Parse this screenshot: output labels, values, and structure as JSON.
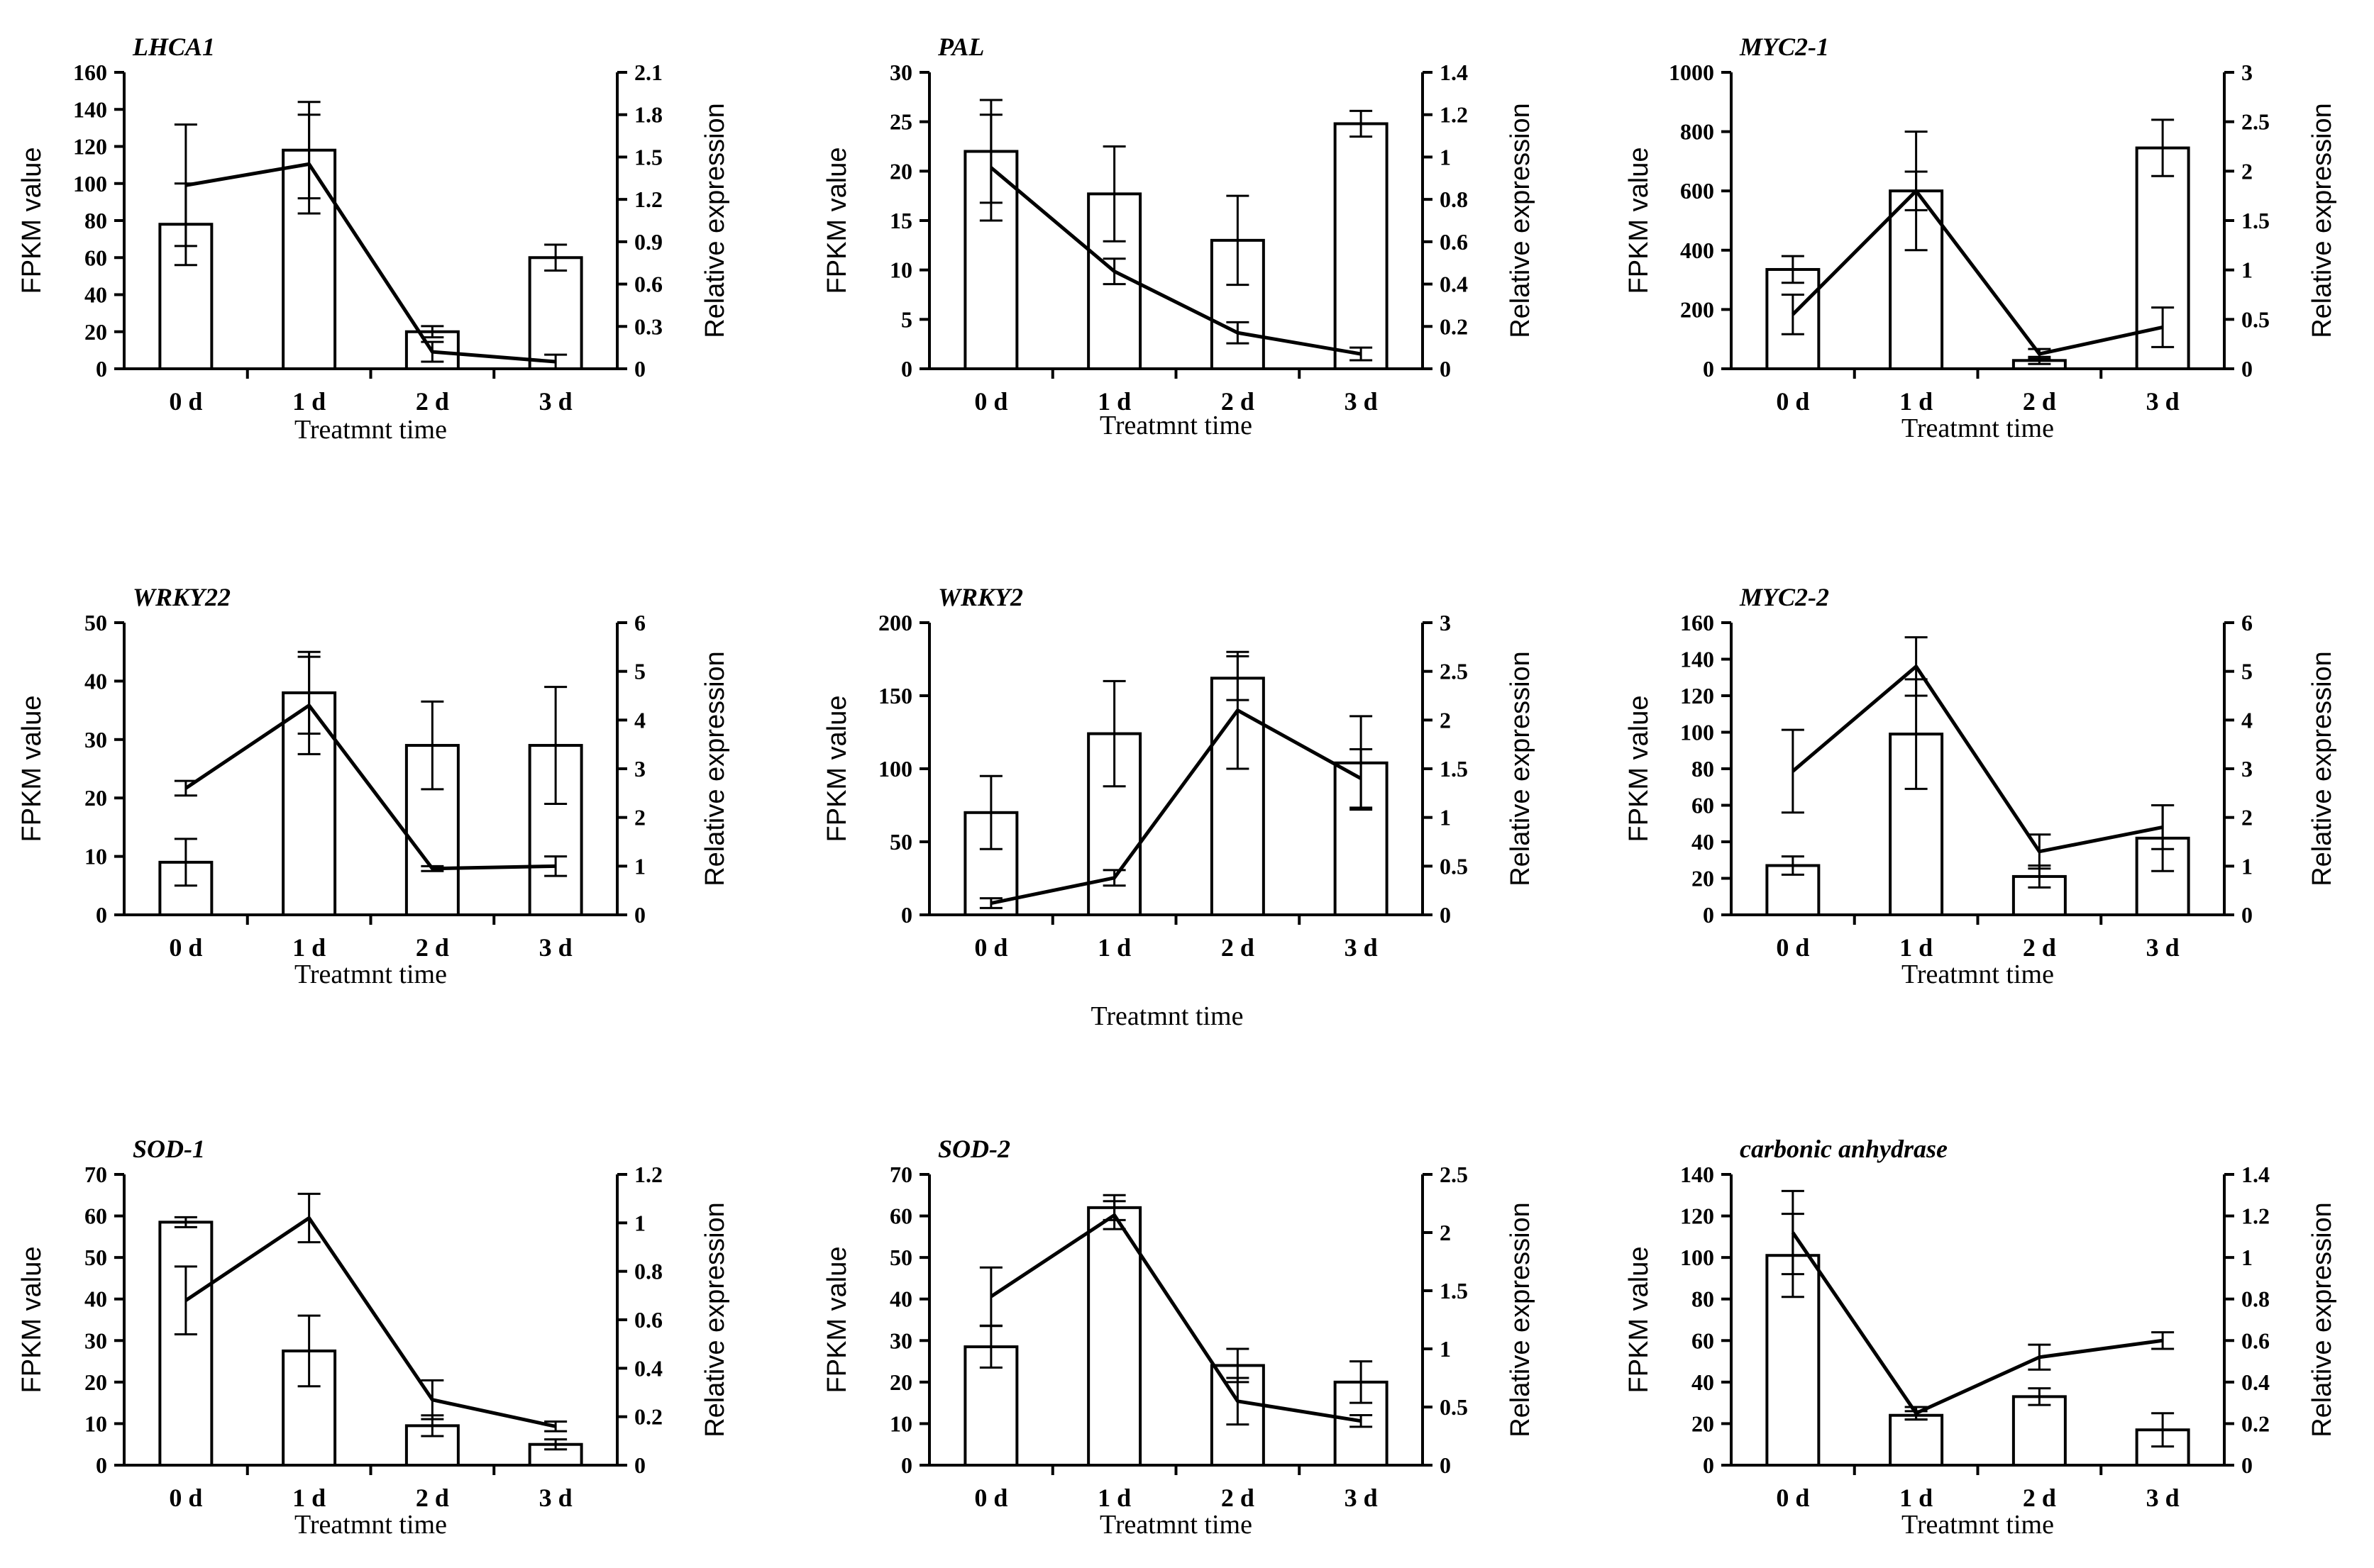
{
  "figure": {
    "shared_xlabel": "Treatmnt time"
  },
  "chart_data": [
    {
      "type": "bar",
      "title": "LHCA1",
      "categories": [
        "0 d",
        "1 d",
        "2 d",
        "3 d"
      ],
      "xlabel": "Treatmnt time",
      "ylabel": "FPKM value",
      "y2label": "Relative expression",
      "ylim": [
        0,
        160
      ],
      "yticks": [
        "0",
        "20",
        "40",
        "60",
        "80",
        "100",
        "120",
        "140",
        "160"
      ],
      "y2lim": [
        0,
        2.1
      ],
      "y2ticks": [
        "0",
        "0.3",
        "0.6",
        "0.9",
        "1.2",
        "1.5",
        "1.8",
        "2.1"
      ],
      "series": [
        {
          "name": "FPKM value",
          "kind": "bar",
          "axis": "left",
          "values": [
            78,
            118,
            20,
            60
          ],
          "errors": [
            22,
            26,
            3,
            7
          ]
        },
        {
          "name": "Relative expression",
          "kind": "line",
          "axis": "right",
          "values": [
            1.3,
            1.45,
            0.12,
            0.05
          ],
          "errors": [
            0.43,
            0.35,
            0.07,
            0.05
          ]
        }
      ]
    },
    {
      "type": "bar",
      "title": "PAL",
      "categories": [
        "0 d",
        "1 d",
        "2 d",
        "3 d"
      ],
      "xlabel": "Treatmnt time",
      "ylabel": "FPKM value",
      "y2label": "Relative expression",
      "ylim": [
        0,
        30
      ],
      "yticks": [
        "0",
        "5",
        "10",
        "15",
        "20",
        "25",
        "30"
      ],
      "y2lim": [
        0,
        1.4
      ],
      "y2ticks": [
        "0",
        "0.2",
        "0.4",
        "0.6",
        "0.8",
        "1",
        "1.2",
        "1.4"
      ],
      "series": [
        {
          "name": "FPKM value",
          "kind": "bar",
          "axis": "left",
          "values": [
            22,
            17.7,
            13,
            24.8
          ],
          "errors": [
            5.2,
            4.8,
            4.5,
            1.3
          ]
        },
        {
          "name": "Relative expression",
          "kind": "line",
          "axis": "right",
          "values": [
            0.95,
            0.46,
            0.17,
            0.07
          ],
          "errors": [
            0.25,
            0.06,
            0.05,
            0.03
          ]
        }
      ]
    },
    {
      "type": "bar",
      "title": "MYC2-1",
      "categories": [
        "0 d",
        "1 d",
        "2 d",
        "3 d"
      ],
      "xlabel": "Treatmnt time",
      "ylabel": "FPKM value",
      "y2label": "Relative expression",
      "ylim": [
        0,
        1000
      ],
      "yticks": [
        "0",
        "200",
        "400",
        "600",
        "800",
        "1000"
      ],
      "y2lim": [
        0,
        3
      ],
      "y2ticks": [
        "0",
        "0.5",
        "1",
        "1.5",
        "2",
        "2.5",
        "3"
      ],
      "series": [
        {
          "name": "FPKM value",
          "kind": "bar",
          "axis": "left",
          "values": [
            335,
            600,
            28,
            745
          ],
          "errors": [
            45,
            65,
            12,
            95
          ]
        },
        {
          "name": "Relative expression",
          "kind": "line",
          "axis": "right",
          "values": [
            0.55,
            1.8,
            0.15,
            0.42
          ],
          "errors": [
            0.2,
            0.6,
            0.05,
            0.2
          ]
        }
      ]
    },
    {
      "type": "bar",
      "title": "WRKY22",
      "categories": [
        "0 d",
        "1 d",
        "2 d",
        "3 d"
      ],
      "xlabel": "Treatmnt time",
      "ylabel": "FPKM value",
      "y2label": "Relative expression",
      "ylim": [
        0,
        50
      ],
      "yticks": [
        "0",
        "10",
        "20",
        "30",
        "40",
        "50"
      ],
      "y2lim": [
        0,
        6
      ],
      "y2ticks": [
        "0",
        "1",
        "2",
        "3",
        "4",
        "5",
        "6"
      ],
      "series": [
        {
          "name": "FPKM value",
          "kind": "bar",
          "axis": "left",
          "values": [
            9,
            38,
            29,
            29
          ],
          "errors": [
            4,
            7,
            7.5,
            10
          ]
        },
        {
          "name": "Relative expression",
          "kind": "line",
          "axis": "right",
          "values": [
            2.6,
            4.3,
            0.95,
            1.0
          ],
          "errors": [
            0.15,
            1.0,
            0.05,
            0.2
          ]
        }
      ]
    },
    {
      "type": "bar",
      "title": "WRKY2",
      "categories": [
        "0 d",
        "1 d",
        "2 d",
        "3 d"
      ],
      "xlabel": "Treatmnt time",
      "ylabel": "FPKM value",
      "y2label": "Relative expression",
      "ylim": [
        0,
        200
      ],
      "yticks": [
        "0",
        "50",
        "100",
        "150",
        "200"
      ],
      "y2lim": [
        0,
        3
      ],
      "y2ticks": [
        "0",
        "0.5",
        "1",
        "1.5",
        "2",
        "2.5",
        "3"
      ],
      "series": [
        {
          "name": "FPKM value",
          "kind": "bar",
          "axis": "left",
          "values": [
            70,
            124,
            162,
            104
          ],
          "errors": [
            25,
            36,
            15,
            32
          ]
        },
        {
          "name": "Relative expression",
          "kind": "line",
          "axis": "right",
          "values": [
            0.12,
            0.38,
            2.1,
            1.4
          ],
          "errors": [
            0.05,
            0.08,
            0.6,
            0.3
          ]
        }
      ]
    },
    {
      "type": "bar",
      "title": "MYC2-2",
      "categories": [
        "0 d",
        "1 d",
        "2 d",
        "3 d"
      ],
      "xlabel": "Treatmnt time",
      "ylabel": "FPKM value",
      "y2label": "Relative expression",
      "ylim": [
        0,
        160
      ],
      "yticks": [
        "0",
        "20",
        "40",
        "60",
        "80",
        "100",
        "120",
        "140",
        "160"
      ],
      "y2lim": [
        0,
        6
      ],
      "y2ticks": [
        "0",
        "1",
        "2",
        "3",
        "4",
        "5",
        "6"
      ],
      "series": [
        {
          "name": "FPKM value",
          "kind": "bar",
          "axis": "left",
          "values": [
            27,
            99,
            21,
            42
          ],
          "errors": [
            5,
            30,
            6,
            18
          ]
        },
        {
          "name": "Relative expression",
          "kind": "line",
          "axis": "right",
          "values": [
            2.95,
            5.1,
            1.3,
            1.8
          ],
          "errors": [
            0.85,
            0.6,
            0.35,
            0.45
          ]
        }
      ]
    },
    {
      "type": "bar",
      "title": "SOD-1",
      "categories": [
        "0 d",
        "1 d",
        "2 d",
        "3 d"
      ],
      "xlabel": "Treatmnt time",
      "ylabel": "FPKM value",
      "y2label": "Relative expression",
      "ylim": [
        0,
        70
      ],
      "yticks": [
        "0",
        "10",
        "20",
        "30",
        "40",
        "50",
        "60",
        "70"
      ],
      "y2lim": [
        0,
        1.2
      ],
      "y2ticks": [
        "0",
        "0.2",
        "0.4",
        "0.6",
        "0.8",
        "1",
        "1.2"
      ],
      "series": [
        {
          "name": "FPKM value",
          "kind": "bar",
          "axis": "left",
          "values": [
            58.5,
            27.5,
            9.5,
            5
          ],
          "errors": [
            1.2,
            8.5,
            2.5,
            1.2
          ]
        },
        {
          "name": "Relative expression",
          "kind": "line",
          "axis": "right",
          "values": [
            0.68,
            1.02,
            0.27,
            0.16
          ],
          "errors": [
            0.14,
            0.1,
            0.08,
            0.02
          ]
        }
      ]
    },
    {
      "type": "bar",
      "title": "SOD-2",
      "categories": [
        "0 d",
        "1 d",
        "2 d",
        "3 d"
      ],
      "xlabel": "Treatmnt time",
      "ylabel": "FPKM value",
      "y2label": "Relative expression",
      "ylim": [
        0,
        70
      ],
      "yticks": [
        "0",
        "10",
        "20",
        "30",
        "40",
        "50",
        "60",
        "70"
      ],
      "y2lim": [
        0,
        2.5
      ],
      "y2ticks": [
        "0",
        "0.5",
        "1",
        "1.5",
        "2",
        "2.5"
      ],
      "series": [
        {
          "name": "FPKM value",
          "kind": "bar",
          "axis": "left",
          "values": [
            28.5,
            62,
            24,
            20
          ],
          "errors": [
            5,
            3,
            4,
            5
          ]
        },
        {
          "name": "Relative expression",
          "kind": "line",
          "axis": "right",
          "values": [
            1.45,
            2.15,
            0.55,
            0.38
          ],
          "errors": [
            0.25,
            0.12,
            0.2,
            0.05
          ]
        }
      ]
    },
    {
      "type": "bar",
      "title": "carbonic anhydrase",
      "categories": [
        "0 d",
        "1 d",
        "2 d",
        "3 d"
      ],
      "xlabel": "Treatmnt time",
      "ylabel": "FPKM value",
      "y2label": "Relative expression",
      "ylim": [
        0,
        140
      ],
      "yticks": [
        "0",
        "20",
        "40",
        "60",
        "80",
        "100",
        "120",
        "140"
      ],
      "y2lim": [
        0,
        1.4
      ],
      "y2ticks": [
        "0",
        "0.2",
        "0.4",
        "0.6",
        "0.8",
        "1",
        "1.2",
        "1.4"
      ],
      "series": [
        {
          "name": "FPKM value",
          "kind": "bar",
          "axis": "left",
          "values": [
            101,
            24,
            33,
            17
          ],
          "errors": [
            20,
            2,
            4,
            8
          ]
        },
        {
          "name": "Relative expression",
          "kind": "line",
          "axis": "right",
          "values": [
            1.12,
            0.25,
            0.52,
            0.6
          ],
          "errors": [
            0.2,
            0.03,
            0.06,
            0.04
          ]
        }
      ]
    }
  ]
}
